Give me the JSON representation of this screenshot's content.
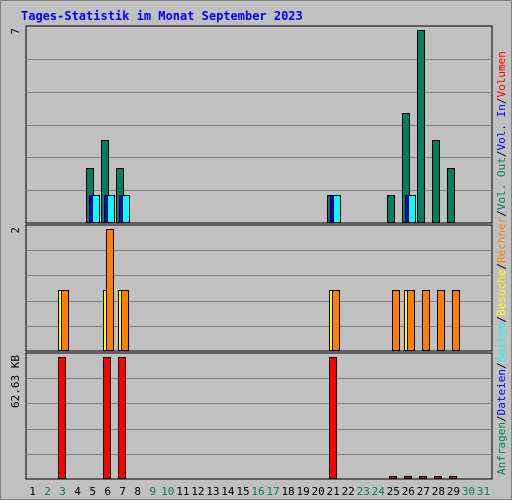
{
  "chart_data": {
    "type": "bar",
    "title": "Tages-Statistik im Monat September 2023",
    "x_labels": [
      "1",
      "2",
      "3",
      "4",
      "5",
      "6",
      "7",
      "8",
      "9",
      "10",
      "11",
      "12",
      "13",
      "14",
      "15",
      "16",
      "17",
      "18",
      "19",
      "20",
      "21",
      "22",
      "23",
      "24",
      "25",
      "26",
      "27",
      "28",
      "29",
      "30",
      "31"
    ],
    "weekend_days": [
      2,
      3,
      9,
      10,
      16,
      17,
      23,
      24,
      30,
      31
    ],
    "right_legend": [
      {
        "text": "Anfragen",
        "color": "#00805c"
      },
      {
        "text": "/",
        "color": "#000000"
      },
      {
        "text": "Dateien",
        "color": "#0000ff"
      },
      {
        "text": "/",
        "color": "#000000"
      },
      {
        "text": "Seiten",
        "color": "#00ffff"
      },
      {
        "text": "/",
        "color": "#000000"
      },
      {
        "text": "Besuche",
        "color": "#ffff00"
      },
      {
        "text": "/",
        "color": "#000000"
      },
      {
        "text": "Rechner",
        "color": "#ff8000"
      },
      {
        "text": "/",
        "color": "#000000"
      },
      {
        "text": "Vol. Out",
        "color": "#00805c"
      },
      {
        "text": "/",
        "color": "#000000"
      },
      {
        "text": "Vol. In",
        "color": "#0000ff"
      },
      {
        "text": "/",
        "color": "#000000"
      },
      {
        "text": "Volumen",
        "color": "#ff0000"
      }
    ],
    "panels": [
      {
        "name": "hits",
        "ylabel": "7",
        "ymax": 7,
        "gridlines": 5,
        "series": [
          {
            "name": "Anfragen",
            "color": "#00805c",
            "values": [
              0,
              0,
              0,
              0,
              2,
              3,
              2,
              0,
              0,
              0,
              0,
              0,
              0,
              0,
              0,
              0,
              0,
              0,
              0,
              0,
              1,
              0,
              0,
              0,
              1,
              4,
              7,
              3,
              2,
              0,
              0
            ]
          },
          {
            "name": "Dateien",
            "color": "#0000ff",
            "values": [
              0,
              0,
              0,
              0,
              1,
              1,
              1,
              0,
              0,
              0,
              0,
              0,
              0,
              0,
              0,
              0,
              0,
              0,
              0,
              0,
              1,
              0,
              0,
              0,
              0,
              1,
              0,
              0,
              0,
              0,
              0
            ]
          },
          {
            "name": "Seiten",
            "color": "#00ffff",
            "values": [
              0,
              0,
              0,
              0,
              1,
              1,
              1,
              0,
              0,
              0,
              0,
              0,
              0,
              0,
              0,
              0,
              0,
              0,
              0,
              0,
              1,
              0,
              0,
              0,
              0,
              1,
              0,
              0,
              0,
              0,
              0
            ]
          }
        ]
      },
      {
        "name": "visits",
        "ylabel": "2",
        "ymax": 2,
        "gridlines": 4,
        "series": [
          {
            "name": "Besuche",
            "color": "#ffff00",
            "values": [
              0,
              0,
              1,
              0,
              0,
              1,
              1,
              0,
              0,
              0,
              0,
              0,
              0,
              0,
              0,
              0,
              0,
              0,
              0,
              0,
              1,
              0,
              0,
              0,
              0,
              1,
              0,
              0,
              0,
              0,
              0
            ]
          },
          {
            "name": "Rechner",
            "color": "#ff8000",
            "values": [
              0,
              0,
              1,
              0,
              0,
              2,
              1,
              0,
              0,
              0,
              0,
              0,
              0,
              0,
              0,
              0,
              0,
              0,
              0,
              0,
              1,
              0,
              0,
              0,
              1,
              1,
              1,
              1,
              1,
              0,
              0
            ]
          }
        ]
      },
      {
        "name": "volume",
        "ylabel": "62.63 KB",
        "ymax": 62.63,
        "gridlines": 4,
        "series": [
          {
            "name": "Volumen",
            "color": "#ff0000",
            "values": [
              0,
              0,
              62.63,
              0,
              0,
              62.63,
              62.63,
              0,
              0,
              0,
              0,
              0,
              0,
              0,
              0,
              0,
              0,
              0,
              0,
              0,
              62.63,
              0,
              0,
              0,
              0.6,
              1.2,
              1.5,
              1.0,
              0.6,
              0,
              0
            ]
          },
          {
            "name": "Vol. Out",
            "color": "#00805c",
            "values": [
              0,
              0,
              0,
              0,
              0,
              0,
              0,
              0,
              0,
              0,
              0,
              0,
              0,
              0,
              0,
              0,
              0,
              0,
              0,
              0,
              0,
              0,
              0,
              0,
              0,
              0,
              0,
              0,
              0,
              0,
              0
            ]
          },
          {
            "name": "Vol. In",
            "color": "#0000ff",
            "values": [
              0,
              0,
              0,
              0,
              0,
              0,
              0,
              0,
              0,
              0,
              0,
              0,
              0,
              0,
              0,
              0,
              0,
              0,
              0,
              0,
              0,
              0,
              0,
              0,
              0,
              0,
              0,
              0,
              0,
              0,
              0
            ]
          }
        ]
      }
    ],
    "colors": {
      "background": "#c0c0c0",
      "title": "#0000ff",
      "grid": "#808080",
      "weekday_label": "#000000",
      "weekend_label": "#00805c"
    }
  }
}
